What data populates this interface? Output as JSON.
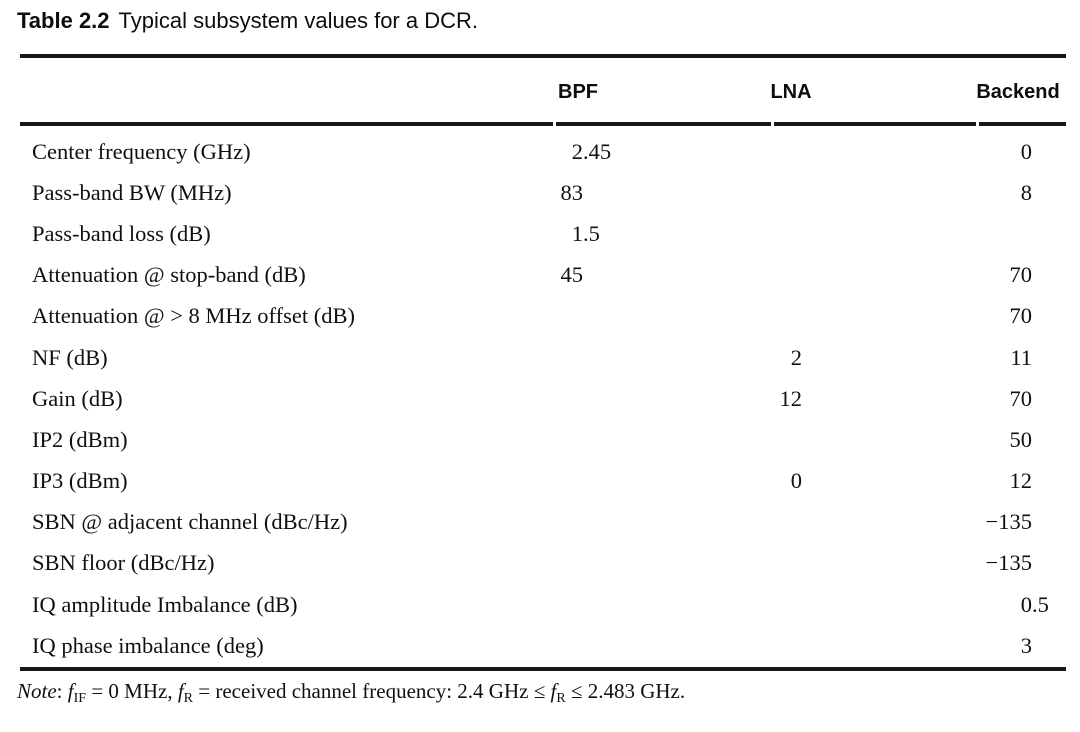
{
  "caption": {
    "label": "Table 2.2",
    "text": "Typical subsystem values for a DCR."
  },
  "table": {
    "columns": [
      "BPF",
      "LNA",
      "Backend"
    ],
    "rows": [
      {
        "label": "Center frequency (GHz)",
        "bpf": "2.45",
        "lna": "",
        "backend": "0"
      },
      {
        "label": "Pass-band BW (MHz)",
        "bpf": "83",
        "lna": "",
        "backend": "8"
      },
      {
        "label": "Pass-band loss (dB)",
        "bpf": "1.5",
        "lna": "",
        "backend": ""
      },
      {
        "label": "Attenuation @ stop-band (dB)",
        "bpf": "45",
        "lna": "",
        "backend": "70"
      },
      {
        "label": "Attenuation @ > 8 MHz offset (dB)",
        "bpf": "",
        "lna": "",
        "backend": "70"
      },
      {
        "label": "NF (dB)",
        "bpf": "",
        "lna": "2",
        "backend": "11"
      },
      {
        "label": "Gain (dB)",
        "bpf": "",
        "lna": "12",
        "backend": "70"
      },
      {
        "label": "IP2 (dBm)",
        "bpf": "",
        "lna": "",
        "backend": "50"
      },
      {
        "label": "IP3 (dBm)",
        "bpf": "",
        "lna": "0",
        "backend": "12"
      },
      {
        "label": "SBN @ adjacent channel (dBc/Hz)",
        "bpf": "",
        "lna": "",
        "backend": "−135"
      },
      {
        "label": "SBN floor (dBc/Hz)",
        "bpf": "",
        "lna": "",
        "backend": "−135"
      },
      {
        "label": "IQ amplitude Imbalance (dB)",
        "bpf": "",
        "lna": "",
        "backend": "0.5"
      },
      {
        "label": "IQ phase imbalance (deg)",
        "bpf": "",
        "lna": "",
        "backend": "3"
      }
    ]
  },
  "note": {
    "segments": [
      {
        "text": "Note",
        "style": "italic"
      },
      {
        "text": ": ",
        "style": "normal"
      },
      {
        "text": "f",
        "style": "italic"
      },
      {
        "text": "IF",
        "style": "sub"
      },
      {
        "text": " = 0 MHz, ",
        "style": "normal"
      },
      {
        "text": "f",
        "style": "italic"
      },
      {
        "text": "R",
        "style": "sub"
      },
      {
        "text": " = received channel frequency: 2.4 GHz ≤ ",
        "style": "normal"
      },
      {
        "text": "f",
        "style": "italic"
      },
      {
        "text": "R",
        "style": "sub"
      },
      {
        "text": " ≤ 2.483 GHz.",
        "style": "normal"
      }
    ]
  },
  "colors": {
    "background": "#ffffff",
    "text": "#101010",
    "rule": "#171717"
  }
}
